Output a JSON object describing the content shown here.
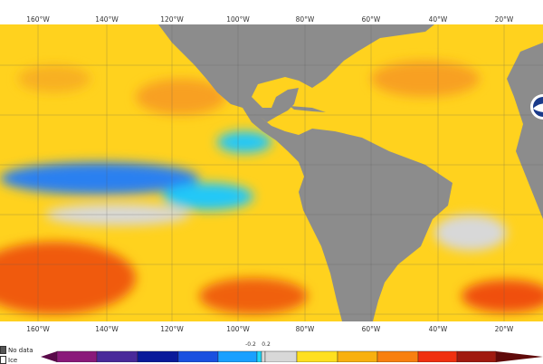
{
  "longitude_labels": [
    "160°W",
    "140°W",
    "120°W",
    "100°W",
    "80°W",
    "60°W",
    "40°W",
    "20°W"
  ],
  "legend": {
    "no_data": "No data",
    "ice": "Ice",
    "no_data_color": "#555555",
    "ice_color": "#ffffff"
  },
  "colorbar": {
    "colors": [
      "#5a0a4a",
      "#8a1a7a",
      "#4a2a9a",
      "#0a1a9a",
      "#1a50e0",
      "#1aa0ff",
      "#20d8f8",
      "#d8d8d8",
      "#d8d8d8",
      "#ffe020",
      "#f8b010",
      "#f88010",
      "#f03010",
      "#a01a10",
      "#600a0a"
    ],
    "tick_labels": [
      "-0.2",
      "0.2"
    ]
  },
  "logo": "NOAA",
  "colors": {
    "land": "#8c8c8c",
    "ocean_warm": "#ffd21e",
    "ocean_orange": "#f8a020",
    "ocean_cold": "#2aa8f0",
    "neutral": "#d8d8d8"
  }
}
